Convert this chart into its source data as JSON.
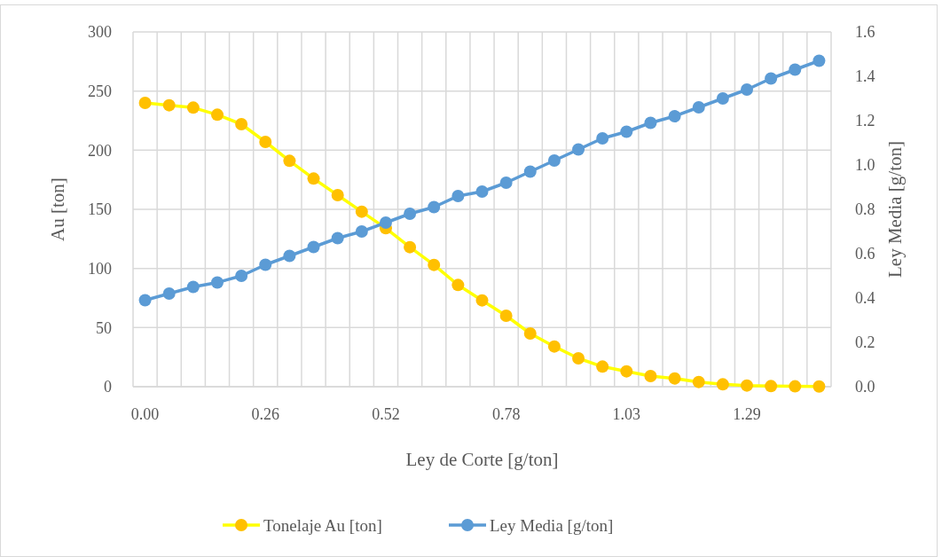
{
  "chart_data": {
    "type": "line",
    "xlabel": "Ley de Corte [g/ton]",
    "ylabel": "Au [ton]",
    "y2label": "Ley Media [g/ton]",
    "categories": [
      "0.00",
      null,
      null,
      null,
      null,
      "0.26",
      null,
      null,
      null,
      null,
      "0.52",
      null,
      null,
      null,
      null,
      "0.78",
      null,
      null,
      null,
      null,
      "1.03",
      null,
      null,
      null,
      null,
      "1.29",
      null,
      null,
      null
    ],
    "series": [
      {
        "name": "Tonelaje Au [ton]",
        "color": "#ffff00",
        "colors": [
          "#ffc000",
          "#ffc000",
          "#ffc000",
          "#ffc000",
          "#ffc000",
          "#ffc000",
          "#ffc000",
          "#ffc000",
          "#ffc000",
          "#ffc000",
          "#ffc000",
          "#ffc000",
          "#ffc000",
          "#ffc000",
          "#ffc000",
          "#ffc000",
          "#ffc000",
          "#ffc000",
          "#ffc000",
          "#ffc000",
          "#ffc000",
          "#ffc000",
          "#ffc000",
          "#ffc000",
          "#ffc000",
          "#ffc000",
          "#ffc000",
          "#ffc000",
          "#ffc000"
        ],
        "values": [
          240,
          238,
          236,
          230,
          222,
          207,
          191,
          176,
          162,
          148,
          134,
          118,
          103,
          86,
          73,
          60,
          45,
          34,
          24,
          17,
          13,
          9,
          7,
          4,
          2,
          1,
          0.5,
          0.3,
          0.2
        ]
      },
      {
        "name": "Ley Media [g/ton]",
        "color": "#5b9bd5",
        "axis": "y2",
        "values": [
          0.39,
          0.42,
          0.45,
          0.47,
          0.5,
          0.55,
          0.59,
          0.63,
          0.67,
          0.7,
          0.74,
          0.78,
          0.81,
          0.86,
          0.88,
          0.92,
          0.97,
          1.02,
          1.07,
          1.12,
          1.15,
          1.19,
          1.22,
          1.26,
          1.3,
          1.34,
          1.39,
          1.43,
          1.47
        ]
      }
    ],
    "ylim": [
      0,
      300
    ],
    "yticks": [
      0,
      50,
      100,
      150,
      200,
      250,
      300
    ],
    "y2lim": [
      0,
      1.6
    ],
    "y2ticks": [
      {
        "value": 0,
        "label": "0.0"
      },
      {
        "value": 0.2,
        "label": "0.2"
      },
      {
        "value": 0.4,
        "label": "0.4"
      },
      {
        "value": 0.6,
        "label": "0.6"
      },
      {
        "value": 0.8,
        "label": "0.8"
      },
      {
        "value": 1,
        "label": "1.0"
      },
      {
        "value": 1.2,
        "label": "1.2"
      },
      {
        "value": 1.4,
        "label": "1.4"
      },
      {
        "value": 1.6,
        "label": "1.6"
      }
    ],
    "grid": true,
    "legend": "bottom",
    "marker": "circle",
    "line_style": "solid"
  }
}
